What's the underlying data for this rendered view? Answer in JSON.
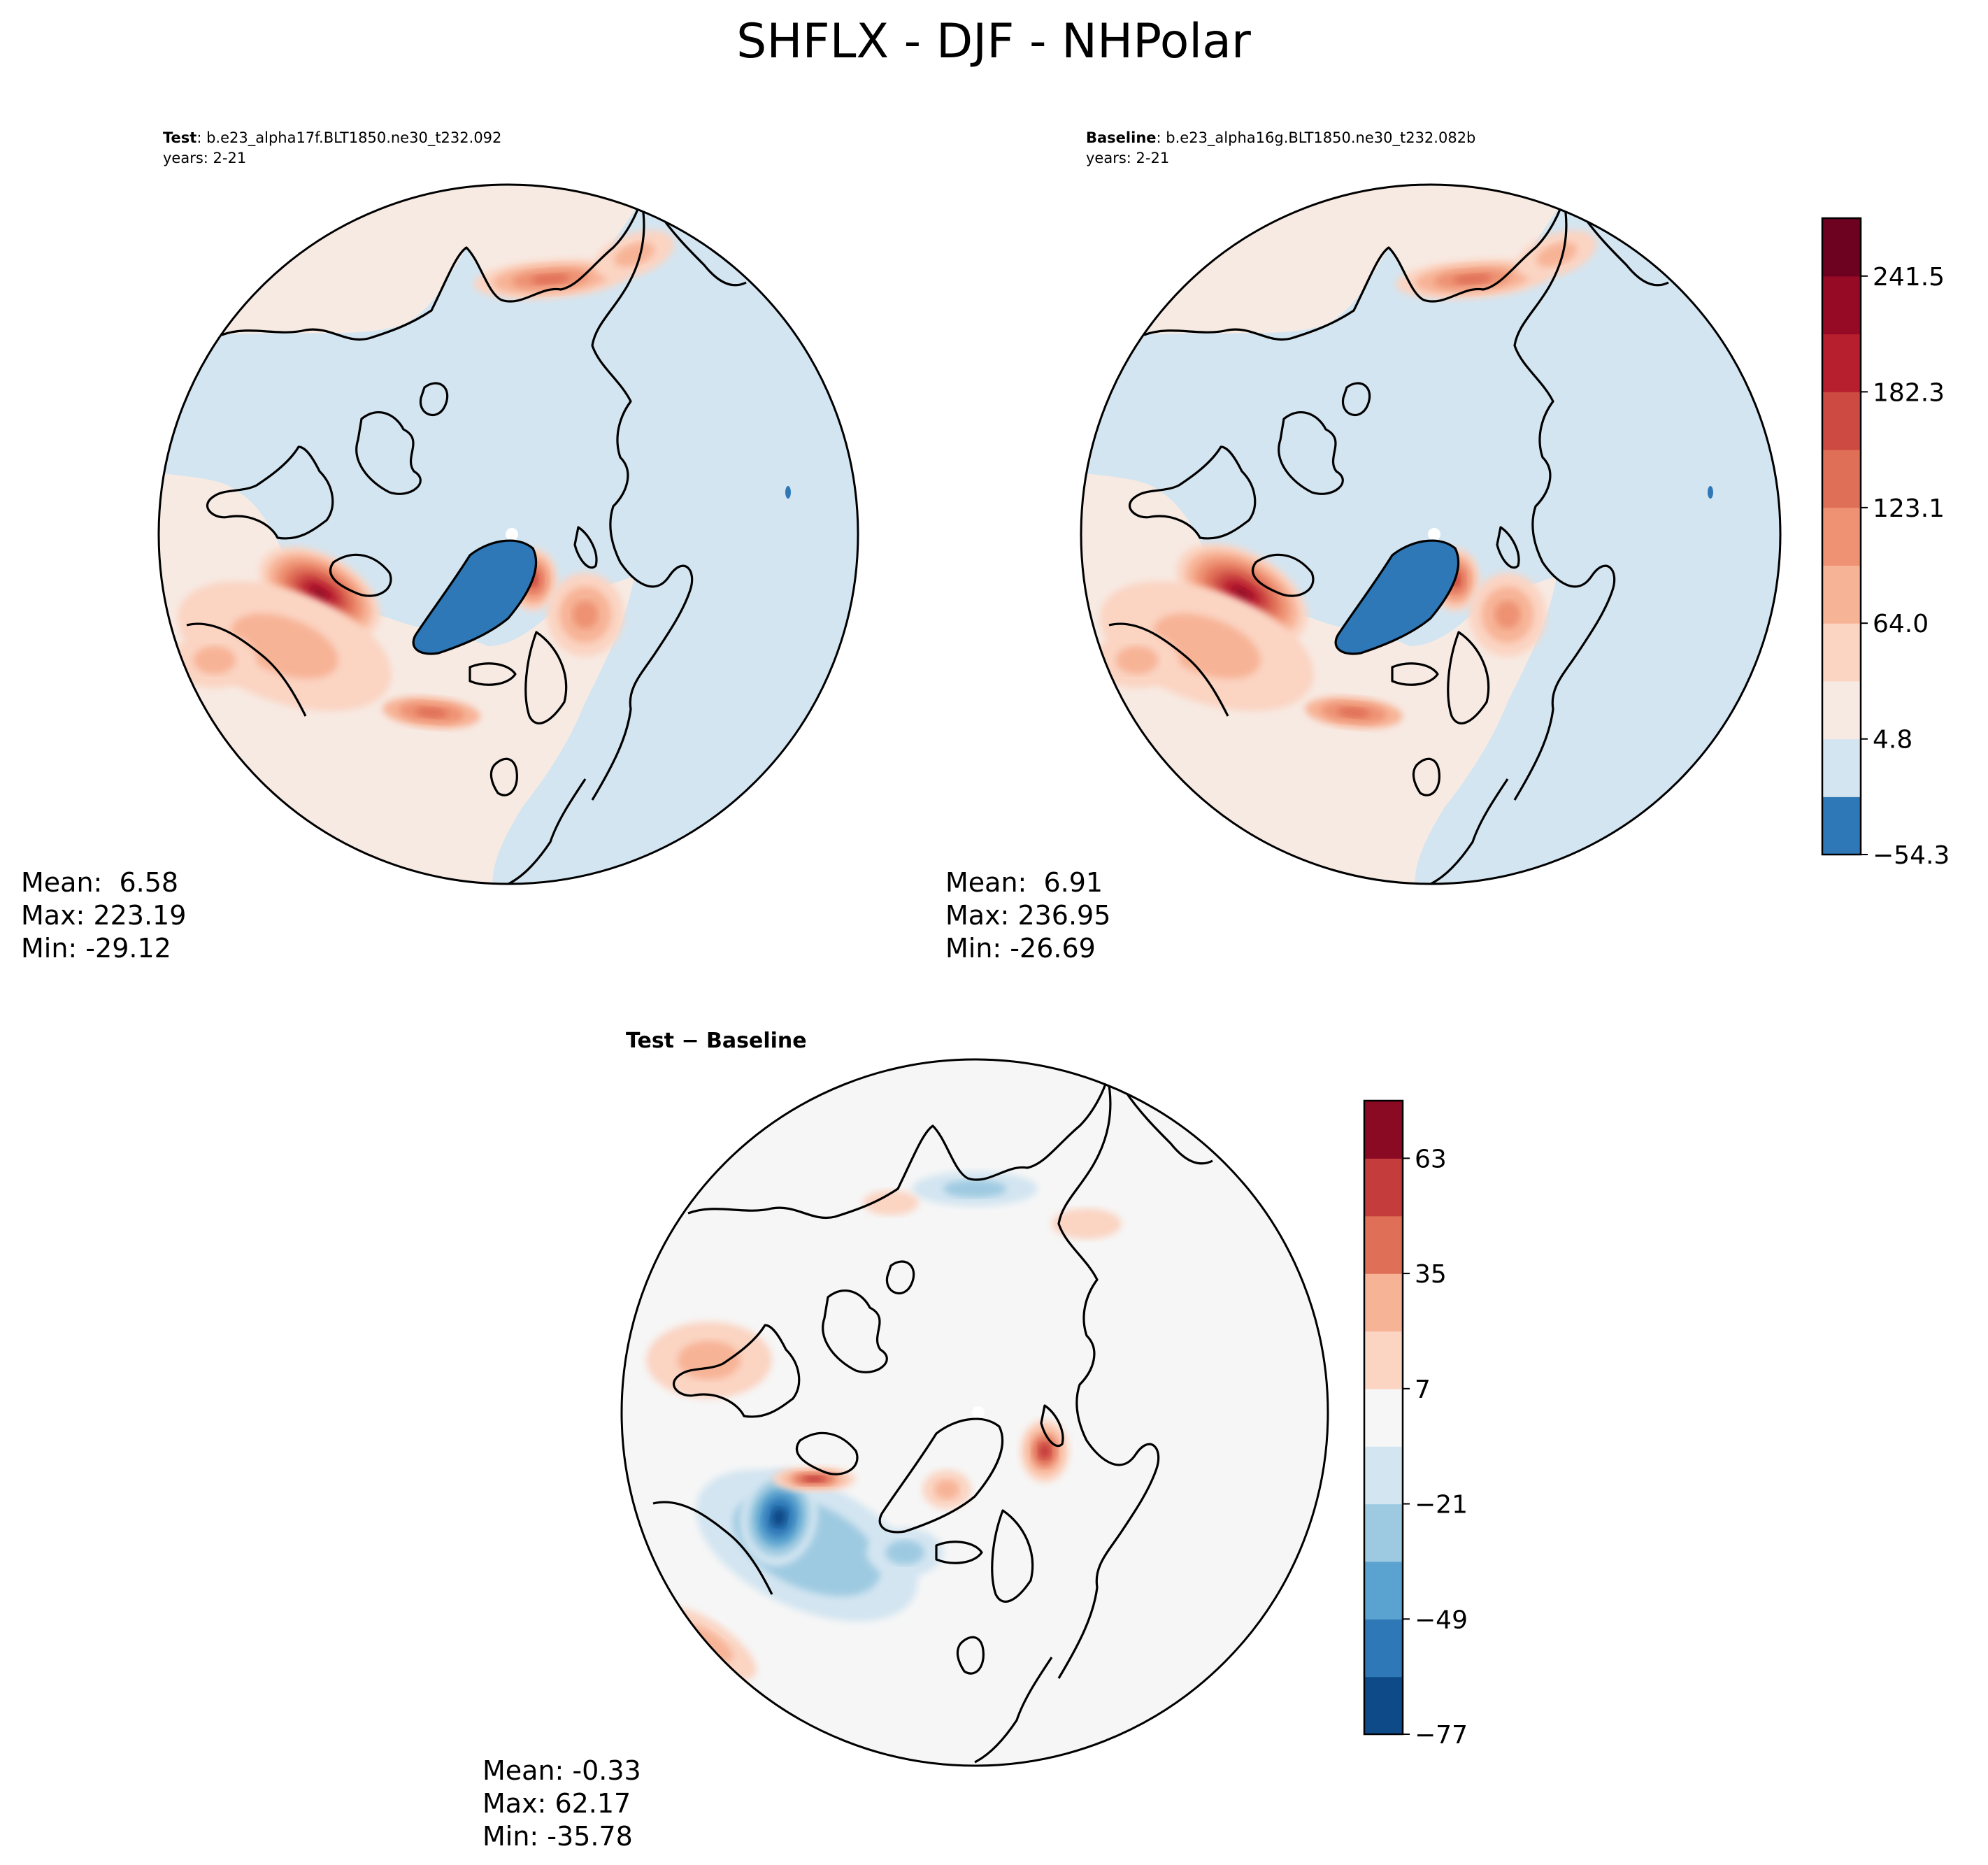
{
  "figure_title": "SHFLX - DJF - NHPolar",
  "colors": {
    "full_levels": [
      "#2e78b7",
      "#d3e5f1",
      "#f7eae3",
      "#fbd4c2",
      "#f7b396",
      "#ee9273",
      "#e06f58",
      "#cc4a42",
      "#b71e2e",
      "#970a26",
      "#6d0120"
    ],
    "diff_levels": [
      "#0f4a88",
      "#2e78b7",
      "#5aa2cf",
      "#9ecae1",
      "#d3e5f1",
      "#f6f6f6",
      "#fbd4c2",
      "#f7b396",
      "#e06f58",
      "#c43c3c",
      "#8b0a23"
    ],
    "ocean_pos": "#f7eae3",
    "ocean_neg": "#d3e5f1",
    "greenland": "#2e78b7",
    "diff_background": "#f6f6f6"
  },
  "panels": {
    "test": {
      "label": "Test",
      "case": "b.e23_alpha17f.BLT1850.ne30_t232.092",
      "years": "years: 2-21",
      "stats": {
        "mean": "Mean:  6.58",
        "max": "Max: 223.19",
        "min": "Min: -29.12"
      }
    },
    "baseline": {
      "label": "Baseline",
      "case": "b.e23_alpha16g.BLT1850.ne30_t232.082b",
      "years": "years: 2-21",
      "stats": {
        "mean": "Mean:  6.91",
        "max": "Max: 236.95",
        "min": "Min: -26.69"
      }
    },
    "diff": {
      "label": "Test − Baseline",
      "stats": {
        "mean": "Mean: -0.33",
        "max": "Max: 62.17",
        "min": "Min: -35.78"
      }
    }
  },
  "chart_data": [
    {
      "type": "heatmap",
      "panel": "test",
      "projection": "north-polar-stereographic",
      "levels": [
        -54.3,
        -24.7,
        4.8,
        34.4,
        64.0,
        93.6,
        123.1,
        152.7,
        182.3,
        211.9,
        241.5,
        271.1
      ],
      "colorbar_ticks": [
        "−54.3",
        "4.8",
        "64.0",
        "123.1",
        "182.3",
        "241.5"
      ],
      "colorbar_tick_values": [
        -54.3,
        4.8,
        64.0,
        123.1,
        182.3,
        241.5
      ],
      "mean": 6.58,
      "max": 223.19,
      "min": -29.12
    },
    {
      "type": "heatmap",
      "panel": "baseline",
      "projection": "north-polar-stereographic",
      "levels": [
        -54.3,
        -24.7,
        4.8,
        34.4,
        64.0,
        93.6,
        123.1,
        152.7,
        182.3,
        211.9,
        241.5,
        271.1
      ],
      "mean": 6.91,
      "max": 236.95,
      "min": -26.69
    },
    {
      "type": "heatmap",
      "panel": "diff",
      "projection": "north-polar-stereographic",
      "levels": [
        -77,
        -63,
        -49,
        -35,
        -21,
        -7,
        7,
        21,
        35,
        49,
        63,
        77
      ],
      "colorbar_ticks": [
        "−77",
        "−49",
        "−21",
        "7",
        "35",
        "63"
      ],
      "colorbar_tick_values": [
        -77,
        -49,
        -21,
        7,
        35,
        63
      ],
      "mean": -0.33,
      "max": 62.17,
      "min": -35.78
    }
  ]
}
